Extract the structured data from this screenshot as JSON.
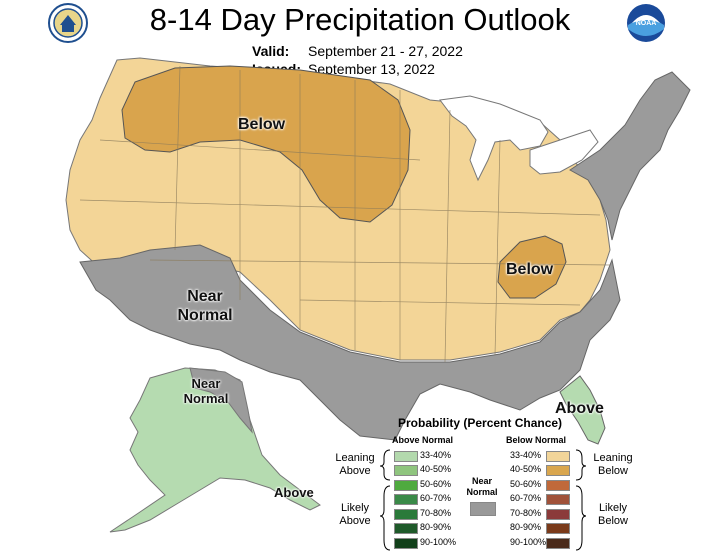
{
  "title": "8-14 Day Precipitation Outlook",
  "valid_label": "Valid:",
  "valid_value": "September 21 - 27, 2022",
  "issued_label": "Issued:",
  "issued_value": "September 13, 2022",
  "logos": {
    "left": "commerce-seal-icon",
    "right": "noaa-logo-icon",
    "noaa_text": "NOAA"
  },
  "map_labels": {
    "below_north": "Below",
    "below_east": "Below",
    "near_normal_sw_1": "Near",
    "near_normal_sw_2": "Normal",
    "near_normal_ak_1": "Near",
    "near_normal_ak_2": "Normal",
    "above_fl": "Above",
    "above_ak": "Above"
  },
  "legend": {
    "title": "Probability (Percent Chance)",
    "above_header": "Above Normal",
    "below_header": "Below Normal",
    "near_label_1": "Near",
    "near_label_2": "Normal",
    "leaning_above_1": "Leaning",
    "leaning_above_2": "Above",
    "likely_above_1": "Likely",
    "likely_above_2": "Above",
    "leaning_below_1": "Leaning",
    "leaning_below_2": "Below",
    "likely_below_1": "Likely",
    "likely_below_2": "Below",
    "above_bins": [
      "33-40%",
      "40-50%",
      "50-60%",
      "60-70%",
      "70-80%",
      "80-90%",
      "90-100%"
    ],
    "below_bins": [
      "33-40%",
      "40-50%",
      "50-60%",
      "60-70%",
      "70-80%",
      "80-90%",
      "90-100%"
    ],
    "above_colors": [
      "#b3d9ad",
      "#8fc57e",
      "#4faa3f",
      "#3a8a48",
      "#2a7a3a",
      "#1f5a2a",
      "#12401a"
    ],
    "below_colors": [
      "#f2d599",
      "#d9a64e",
      "#c0693a",
      "#a0523a",
      "#8b3a3a",
      "#7a3a1a",
      "#4a2a1a"
    ],
    "near_color": "#999999"
  },
  "colors": {
    "leaning_below": "#f3d597",
    "below_40_50": "#d9a44d",
    "near_normal": "#9b9b9b",
    "leaning_above": "#b5dbb0"
  }
}
